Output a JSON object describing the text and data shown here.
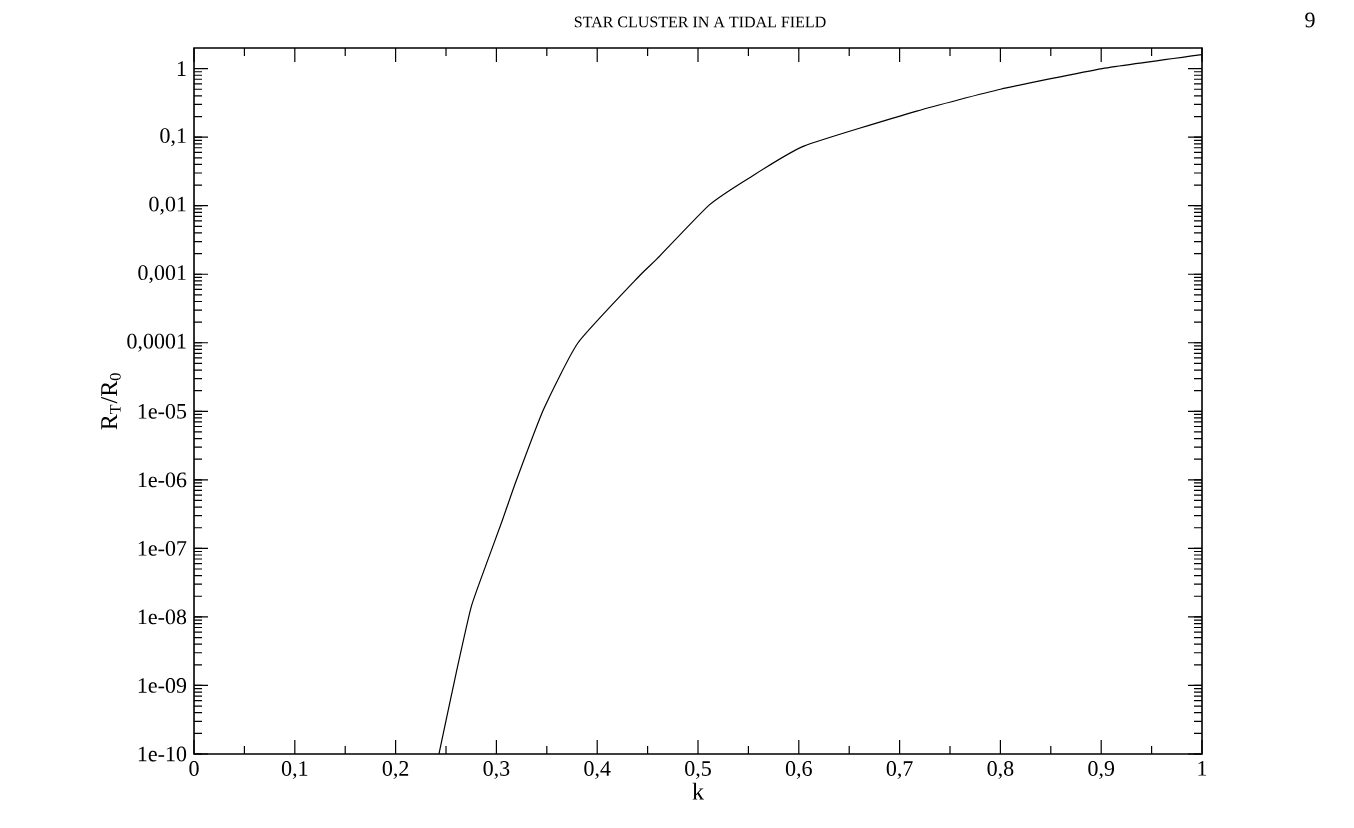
{
  "chart_data": {
    "type": "line",
    "xlabel": "k",
    "ylabel": "R$_{T}$/R$_{0}$",
    "annotations": [
      "STAR CLUSTER IN A TIDAL FIELD",
      "9"
    ],
    "log": "y",
    "xlim": [
      0,
      1
    ],
    "ylim": [
      1e-10,
      2
    ],
    "xticks": [
      0,
      {
        "value": 0.1,
        "label": "0,1"
      },
      {
        "value": 0.2,
        "label": "0,2"
      },
      {
        "value": 0.3,
        "label": "0,3"
      },
      {
        "value": 0.4,
        "label": "0,4"
      },
      {
        "value": 0.5,
        "label": "0,5"
      },
      {
        "value": 0.6,
        "label": "0,6"
      },
      {
        "value": 0.7,
        "label": "0,7"
      },
      {
        "value": 0.8,
        "label": "0,8"
      },
      {
        "value": 0.9,
        "label": "0,9"
      },
      1
    ],
    "yticks": [
      {
        "value": 1e-10,
        "label": "1e-10"
      },
      {
        "value": 1e-09,
        "label": "1e-09"
      },
      {
        "value": 1e-08,
        "label": "1e-08"
      },
      {
        "value": 1e-07,
        "label": "1e-07"
      },
      {
        "value": 1e-06,
        "label": "1e-06"
      },
      {
        "value": 1e-05,
        "label": "1e-05"
      },
      {
        "value": 0.0001,
        "label": "0,0001"
      },
      {
        "value": 0.001,
        "label": "0,001"
      },
      {
        "value": 0.01,
        "label": "0,01"
      },
      {
        "value": 0.1,
        "label": "0,1"
      },
      1
    ],
    "marker": "none",
    "line_style": "solid",
    "series": [
      {
        "color": "#000000",
        "x": [
          0.243,
          0.26,
          0.275,
          0.2917,
          0.306,
          0.32,
          0.3466,
          0.381,
          0.442,
          0.459,
          0.511,
          0.55,
          0.605,
          0.717,
          0.8,
          0.901,
          1.0
        ],
        "values": [
          1e-10,
          1.5e-09,
          1.4e-08,
          6.9e-08,
          2.6e-07,
          1e-06,
          1.05e-05,
          0.0001,
          0.00095,
          0.00166,
          0.0102,
          0.025,
          0.074,
          0.24,
          0.5,
          1.0,
          1.6
        ]
      }
    ]
  }
}
